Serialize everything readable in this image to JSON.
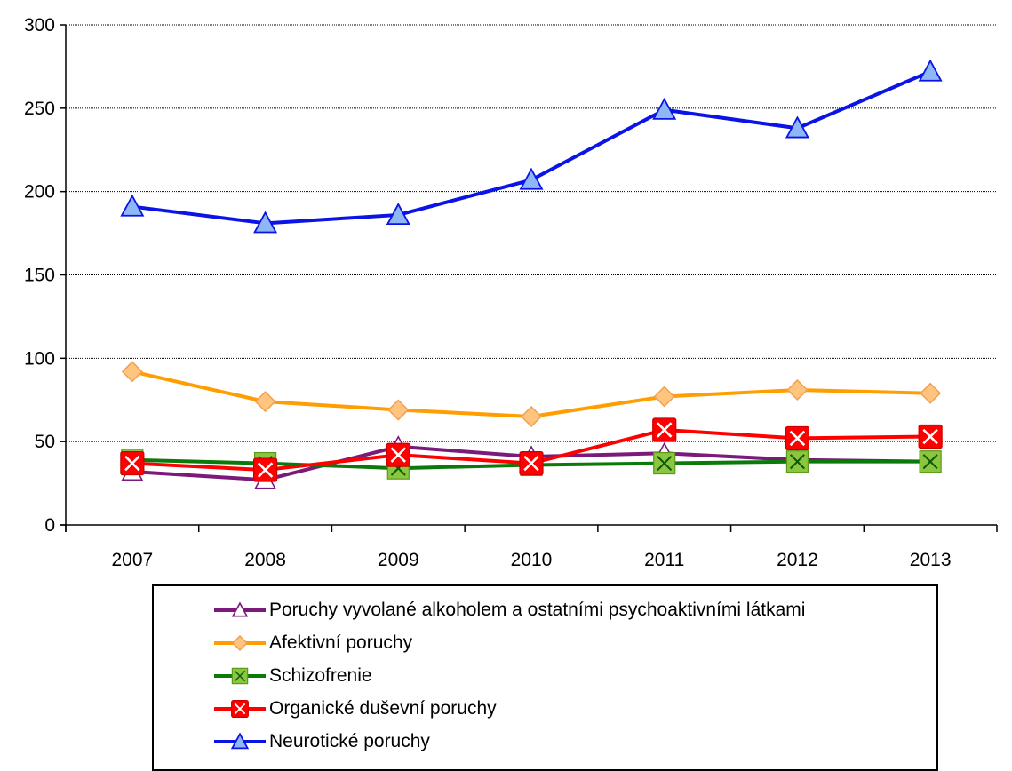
{
  "chart_data": {
    "type": "line",
    "x": [
      "2007",
      "2008",
      "2009",
      "2010",
      "2011",
      "2012",
      "2013"
    ],
    "ylim": [
      0,
      300
    ],
    "yticks": [
      0,
      50,
      100,
      150,
      200,
      250,
      300
    ],
    "grid": "horizontal",
    "legend_position": "bottom",
    "series": [
      {
        "name": "Poruchy vyvolané alkoholem a ostatními psychoaktivními látkami",
        "values": [
          32,
          27,
          47,
          41,
          43,
          39,
          38
        ],
        "color": "#7b1a7b",
        "marker": "triangle-open"
      },
      {
        "name": "Afektivní poruchy",
        "values": [
          92,
          74,
          69,
          65,
          77,
          81,
          79
        ],
        "color": "#ff9e00",
        "marker": "diamond"
      },
      {
        "name": "Schizofrenie",
        "values": [
          39,
          37,
          34,
          36,
          37,
          38,
          38
        ],
        "color": "#0a7a0a",
        "marker": "square-x"
      },
      {
        "name": "Organické duševní poruchy",
        "values": [
          37,
          33,
          42,
          37,
          57,
          52,
          53
        ],
        "color": "#ff0000",
        "marker": "square-x-red"
      },
      {
        "name": "Neurotické poruchy",
        "values": [
          191,
          181,
          186,
          207,
          249,
          238,
          272
        ],
        "color": "#0a14e6",
        "marker": "triangle"
      }
    ],
    "legend_order": [
      0,
      1,
      2,
      3,
      4
    ]
  }
}
